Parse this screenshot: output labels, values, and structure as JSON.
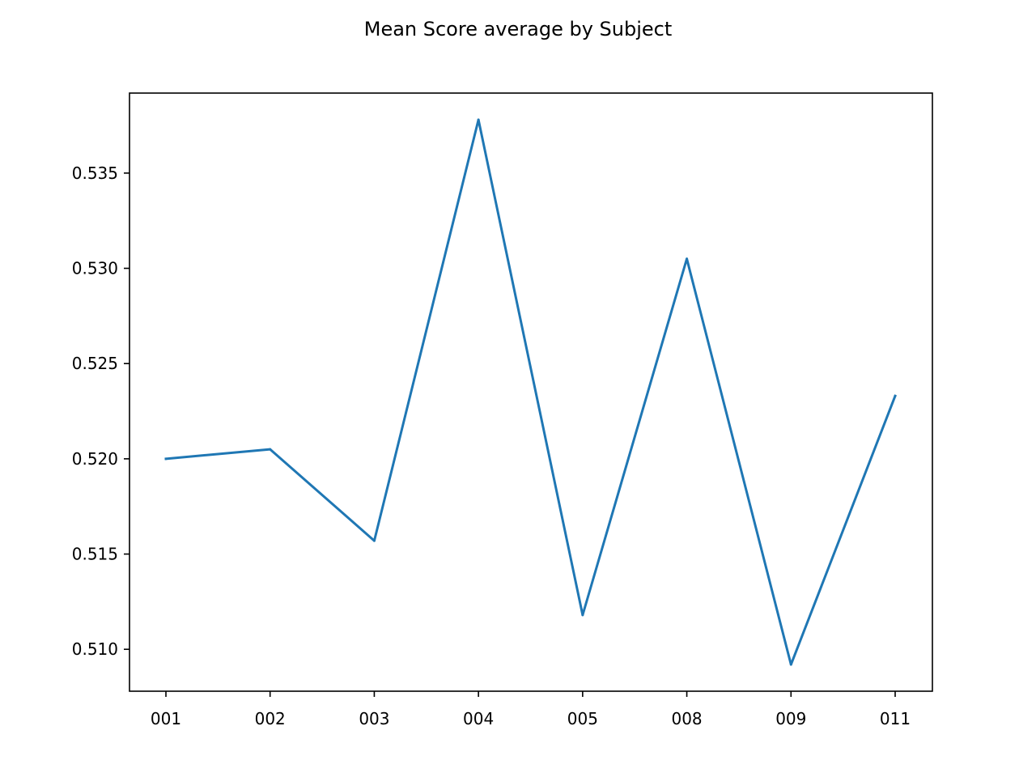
{
  "chart_data": {
    "type": "line",
    "title": "Mean Score average by Subject",
    "xlabel": "",
    "ylabel": "",
    "categories": [
      "001",
      "002",
      "003",
      "004",
      "005",
      "008",
      "009",
      "011"
    ],
    "series": [
      {
        "values": [
          0.52,
          0.5205,
          0.5157,
          0.5378,
          0.5118,
          0.5305,
          0.5092,
          0.5233
        ]
      }
    ],
    "ylim": [
      0.5078,
      0.5392
    ],
    "yticks": [
      "0.510",
      "0.515",
      "0.520",
      "0.525",
      "0.530",
      "0.535"
    ],
    "ytick_values": [
      0.51,
      0.515,
      0.52,
      0.525,
      0.53,
      0.535
    ],
    "grid": false,
    "line_color": "#1f77b4"
  }
}
